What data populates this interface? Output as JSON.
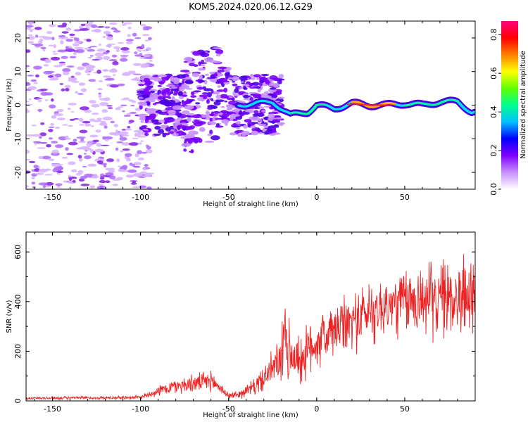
{
  "figure_title": "KOM5.2024.020.06.12.G29",
  "chart_data": [
    {
      "type": "heatmap",
      "xlabel": "Height of straight line (km)",
      "ylabel": "Frequency (Hz)",
      "xlim": [
        -165,
        90
      ],
      "ylim": [
        -25,
        25
      ],
      "x_ticks": [
        -150,
        -100,
        -50,
        0,
        50
      ],
      "y_ticks": [
        -20,
        -10,
        0,
        10,
        20
      ],
      "colorbar": {
        "label": "Normalized spectral amplitude",
        "range": [
          0,
          0.87
        ],
        "ticks": [
          0.0,
          0.2,
          0.4,
          0.6,
          0.8
        ],
        "colors": [
          "#ffffff",
          "#c890ff",
          "#8000ff",
          "#0000ff",
          "#00c0ff",
          "#00ff90",
          "#60ff00",
          "#ffff00",
          "#ff8000",
          "#ff0000",
          "#ff0080"
        ]
      },
      "signal_track": {
        "x": [
          -45,
          -35,
          -25,
          -15,
          -5,
          0,
          10,
          20,
          30,
          40,
          50,
          60,
          70,
          80,
          88
        ],
        "frequency": [
          0,
          0.5,
          1,
          -3,
          -2,
          0,
          -1,
          0.5,
          0,
          0,
          0.5,
          0,
          1,
          1,
          -2
        ]
      },
      "noise_band": {
        "x_range": [
          -165,
          -100
        ],
        "freq_range": [
          -25,
          25
        ]
      },
      "broadband_region": {
        "x_range": [
          -100,
          -20
        ],
        "freq_range": [
          -8,
          10
        ]
      }
    },
    {
      "type": "line",
      "xlabel": "Height of straight line (km)",
      "ylabel": "SNR (v/v)",
      "xlim": [
        -165,
        90
      ],
      "ylim": [
        0,
        680
      ],
      "x_ticks": [
        -150,
        -100,
        -50,
        0,
        50
      ],
      "y_ticks": [
        0,
        200,
        400,
        600
      ],
      "series": [
        {
          "color": "#ee2222",
          "x": [
            -165,
            -140,
            -120,
            -100,
            -90,
            -80,
            -70,
            -60,
            -55,
            -50,
            -45,
            -40,
            -35,
            -30,
            -25,
            -20,
            -18,
            -15,
            -10,
            -5,
            0,
            10,
            20,
            30,
            40,
            50,
            60,
            70,
            80,
            90
          ],
          "mean": [
            10,
            12,
            12,
            15,
            40,
            60,
            70,
            80,
            55,
            20,
            25,
            40,
            60,
            90,
            130,
            170,
            230,
            190,
            160,
            200,
            240,
            280,
            320,
            360,
            380,
            400,
            410,
            410,
            420,
            420
          ],
          "amplitude": [
            8,
            8,
            8,
            10,
            25,
            40,
            45,
            50,
            35,
            15,
            20,
            30,
            45,
            60,
            90,
            120,
            300,
            140,
            130,
            140,
            140,
            140,
            150,
            160,
            160,
            170,
            180,
            190,
            200,
            200
          ]
        }
      ]
    }
  ]
}
